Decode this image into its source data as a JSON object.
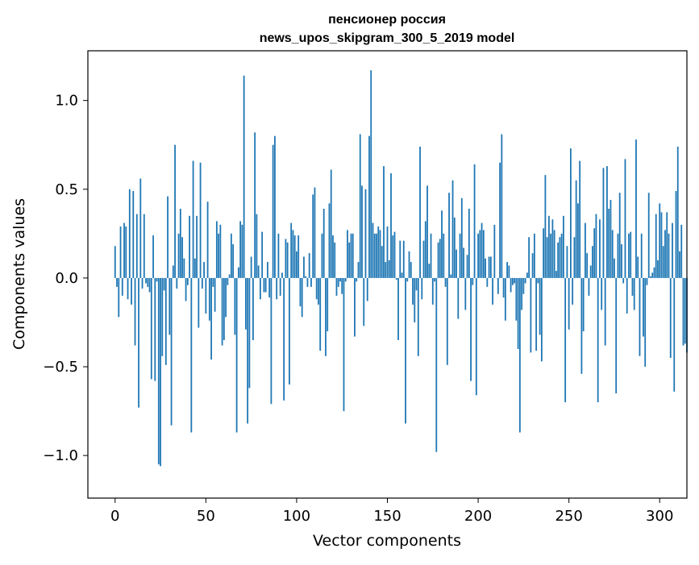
{
  "chart_data": {
    "type": "bar",
    "title": "пенсионер россия",
    "subtitle": "news_upos_skipgram_300_5_2019 model",
    "xlabel": "Vector components",
    "ylabel": "Components values",
    "xlim": [
      -15,
      315
    ],
    "ylim": [
      -1.24,
      1.28
    ],
    "x_ticks": [
      0,
      50,
      100,
      150,
      200,
      250,
      300
    ],
    "x_tick_labels": [
      "0",
      "50",
      "100",
      "150",
      "200",
      "250",
      "300"
    ],
    "y_ticks": [
      -1.0,
      -0.5,
      0.0,
      0.5,
      1.0
    ],
    "y_tick_labels": [
      "−1.0",
      "−0.5",
      "0.0",
      "0.5",
      "1.0"
    ],
    "grid": false,
    "bar_color": "#1f77b4",
    "values": [
      0.18,
      -0.05,
      -0.22,
      0.29,
      -0.1,
      0.31,
      0.29,
      -0.12,
      0.5,
      -0.15,
      0.49,
      -0.38,
      0.36,
      -0.73,
      0.56,
      -0.06,
      0.36,
      -0.03,
      -0.05,
      -0.08,
      -0.57,
      0.24,
      -0.58,
      -0.02,
      -1.05,
      -1.06,
      -0.44,
      -0.07,
      -0.49,
      0.46,
      -0.32,
      -0.83,
      0.07,
      0.75,
      -0.06,
      0.25,
      0.39,
      0.23,
      0.11,
      -0.13,
      -0.04,
      0.35,
      -0.87,
      0.66,
      0.11,
      0.35,
      -0.28,
      0.65,
      -0.06,
      0.09,
      -0.2,
      0.43,
      -0.24,
      -0.46,
      -0.05,
      -0.19,
      0.32,
      0.25,
      0.3,
      -0.38,
      -0.35,
      -0.22,
      -0.04,
      0.02,
      0.25,
      0.19,
      -0.32,
      -0.87,
      0.06,
      0.32,
      0.3,
      1.14,
      -0.29,
      -0.82,
      -0.62,
      0.12,
      -0.35,
      0.82,
      0.36,
      0.07,
      -0.12,
      0.26,
      -0.08,
      -0.08,
      0.09,
      -0.11,
      -0.71,
      0.75,
      0.8,
      -0.12,
      0.25,
      -0.1,
      0.03,
      -0.69,
      0.22,
      0.2,
      -0.6,
      0.31,
      0.27,
      0.24,
      0.15,
      0.24,
      -0.16,
      -0.22,
      0.12,
      0.01,
      -0.05,
      0.14,
      -0.05,
      0.47,
      0.51,
      -0.12,
      -0.15,
      -0.41,
      0.25,
      0.39,
      -0.44,
      -0.3,
      0.42,
      0.61,
      0.24,
      0.2,
      -0.1,
      -0.05,
      -0.02,
      -0.09,
      -0.75,
      -0.02,
      0.27,
      0.2,
      0.25,
      0.25,
      -0.33,
      -0.02,
      0.09,
      0.81,
      0.52,
      -0.27,
      0.5,
      -0.13,
      0.8,
      1.17,
      0.31,
      0.25,
      0.25,
      0.29,
      0.27,
      0.18,
      0.63,
      0.09,
      0.29,
      0.1,
      0.59,
      0.24,
      0.26,
      -0.01,
      -0.35,
      0.21,
      0.03,
      0.21,
      -0.82,
      -0.02,
      0.15,
      0.09,
      -0.15,
      -0.25,
      -0.07,
      -0.44,
      0.74,
      -0.12,
      0.21,
      0.32,
      0.52,
      0.08,
      0.25,
      -0.15,
      -0.02,
      -0.98,
      0.2,
      0.22,
      0.38,
      0.25,
      -0.05,
      -0.49,
      0.48,
      0.02,
      0.55,
      0.34,
      0.16,
      -0.23,
      0.25,
      0.45,
      0.17,
      -0.18,
      0.13,
      0.39,
      -0.58,
      -0.04,
      0.64,
      -0.66,
      0.25,
      0.27,
      0.31,
      0.27,
      0.11,
      -0.05,
      0.12,
      0.12,
      -0.15,
      0.3,
      0.0,
      -0.09,
      0.65,
      0.81,
      -0.11,
      -0.24,
      0.09,
      0.07,
      -0.08,
      -0.04,
      -0.03,
      -0.24,
      -0.4,
      -0.87,
      -0.18,
      -0.09,
      -0.03,
      0.03,
      0.23,
      -0.42,
      0.14,
      0.25,
      -0.41,
      -0.03,
      -0.32,
      -0.47,
      0.28,
      0.58,
      0.23,
      0.35,
      0.25,
      0.33,
      0.27,
      0.04,
      0.2,
      0.23,
      0.25,
      0.35,
      -0.7,
      0.18,
      -0.29,
      0.73,
      -0.15,
      0.23,
      0.55,
      0.42,
      0.66,
      -0.54,
      -0.3,
      0.31,
      0.14,
      -0.1,
      0.07,
      0.18,
      0.28,
      0.36,
      -0.7,
      0.33,
      -0.18,
      0.62,
      -0.38,
      0.63,
      0.39,
      0.44,
      0.27,
      0.11,
      -0.65,
      0.25,
      0.48,
      0.19,
      -0.03,
      0.67,
      -0.2,
      0.25,
      0.26,
      -0.1,
      -0.18,
      0.78,
      0.12,
      -0.44,
      0.25,
      -0.33,
      -0.5,
      -0.04,
      0.48,
      0.01,
      0.03,
      0.06,
      0.36,
      0.1,
      0.42,
      0.37,
      0.18,
      0.27,
      0.37,
      0.25,
      -0.45,
      0.31,
      -0.64,
      0.49,
      0.74,
      0.15,
      0.3,
      -0.38,
      -0.37,
      -0.42
    ]
  }
}
